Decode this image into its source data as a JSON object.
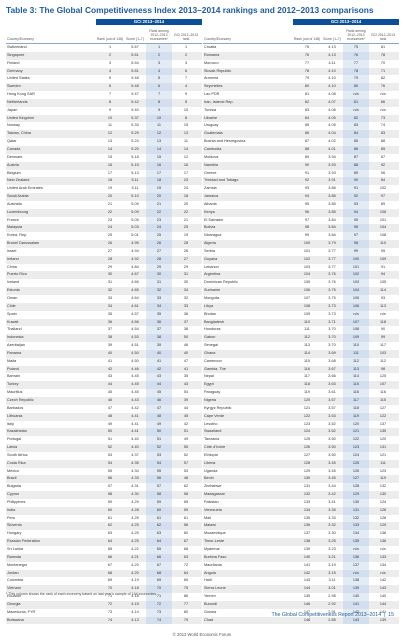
{
  "page_title": "Table 3: The Global Competitiveness Index 2013–2014 rankings and 2012–2013 comparisons",
  "header": {
    "gci_1314": "GCI 2013–2014",
    "country": "Country/Economy",
    "rank": "Rank (out of 148)",
    "score": "Score (1–7)",
    "rank_among": "Rank among 2012–2013 economies*",
    "gci_1213": "GCI 2012–2013 rank"
  },
  "left_rows": [
    [
      "Switzerland",
      "1",
      "5.67",
      "1",
      "1"
    ],
    [
      "Singapore",
      "2",
      "5.61",
      "2",
      "2"
    ],
    [
      "Finland",
      "3",
      "5.54",
      "3",
      "3"
    ],
    [
      "Germany",
      "4",
      "5.51",
      "4",
      "6"
    ],
    [
      "United States",
      "5",
      "5.48",
      "5",
      "7"
    ],
    [
      "Sweden",
      "6",
      "5.48",
      "6",
      "4"
    ],
    [
      "Hong Kong SAR",
      "7",
      "5.47",
      "7",
      "9"
    ],
    [
      "Netherlands",
      "8",
      "5.42",
      "8",
      "5"
    ],
    [
      "Japan",
      "9",
      "5.40",
      "9",
      "10"
    ],
    [
      "United Kingdom",
      "10",
      "5.37",
      "10",
      "8"
    ],
    [
      "Norway",
      "11",
      "5.33",
      "11",
      "15"
    ],
    [
      "Taiwan, China",
      "12",
      "5.29",
      "12",
      "13"
    ],
    [
      "Qatar",
      "13",
      "5.24",
      "13",
      "11"
    ],
    [
      "Canada",
      "14",
      "5.20",
      "14",
      "14"
    ],
    [
      "Denmark",
      "15",
      "5.18",
      "15",
      "12"
    ],
    [
      "Austria",
      "16",
      "5.15",
      "16",
      "16"
    ],
    [
      "Belgium",
      "17",
      "5.13",
      "17",
      "17"
    ],
    [
      "New Zealand",
      "18",
      "5.11",
      "18",
      "23"
    ],
    [
      "United Arab Emirates",
      "19",
      "5.11",
      "19",
      "24"
    ],
    [
      "Saudi Arabia",
      "20",
      "5.10",
      "20",
      "18"
    ],
    [
      "Australia",
      "21",
      "5.09",
      "21",
      "20"
    ],
    [
      "Luxembourg",
      "22",
      "5.09",
      "22",
      "22"
    ],
    [
      "France",
      "23",
      "5.05",
      "23",
      "21"
    ],
    [
      "Malaysia",
      "24",
      "5.03",
      "24",
      "25"
    ],
    [
      "Korea, Rep.",
      "25",
      "5.01",
      "25",
      "19"
    ],
    [
      "Brunei Darussalam",
      "26",
      "4.95",
      "26",
      "28"
    ],
    [
      "Israel",
      "27",
      "4.94",
      "27",
      "26"
    ],
    [
      "Ireland",
      "28",
      "4.92",
      "28",
      "27"
    ],
    [
      "China",
      "29",
      "4.84",
      "29",
      "29"
    ],
    [
      "Puerto Rico",
      "30",
      "4.67",
      "30",
      "31"
    ],
    [
      "Iceland",
      "31",
      "4.66",
      "31",
      "30"
    ],
    [
      "Estonia",
      "32",
      "4.65",
      "32",
      "34"
    ],
    [
      "Oman",
      "33",
      "4.64",
      "33",
      "32"
    ],
    [
      "Chile",
      "34",
      "4.61",
      "34",
      "33"
    ],
    [
      "Spain",
      "35",
      "4.57",
      "35",
      "36"
    ],
    [
      "Kuwait",
      "36",
      "4.56",
      "36",
      "37"
    ],
    [
      "Thailand",
      "37",
      "4.54",
      "37",
      "38"
    ],
    [
      "Indonesia",
      "38",
      "4.53",
      "38",
      "50"
    ],
    [
      "Azerbaijan",
      "39",
      "4.51",
      "39",
      "46"
    ],
    [
      "Panama",
      "40",
      "4.50",
      "40",
      "40"
    ],
    [
      "Malta",
      "41",
      "4.50",
      "41",
      "47"
    ],
    [
      "Poland",
      "42",
      "4.46",
      "42",
      "41"
    ],
    [
      "Bahrain",
      "43",
      "4.45",
      "43",
      "35"
    ],
    [
      "Turkey",
      "44",
      "4.45",
      "44",
      "43"
    ],
    [
      "Mauritius",
      "45",
      "4.45",
      "45",
      "54"
    ],
    [
      "Czech Republic",
      "46",
      "4.43",
      "46",
      "39"
    ],
    [
      "Barbados",
      "47",
      "4.42",
      "47",
      "44"
    ],
    [
      "Lithuania",
      "48",
      "4.41",
      "48",
      "45"
    ],
    [
      "Italy",
      "49",
      "4.41",
      "49",
      "42"
    ],
    [
      "Kazakhstan",
      "50",
      "4.41",
      "50",
      "51"
    ],
    [
      "Portugal",
      "51",
      "4.40",
      "51",
      "49"
    ],
    [
      "Latvia",
      "52",
      "4.40",
      "52",
      "55"
    ],
    [
      "South Africa",
      "53",
      "4.37",
      "53",
      "52"
    ],
    [
      "Costa Rica",
      "54",
      "4.35",
      "54",
      "57"
    ],
    [
      "Mexico",
      "55",
      "4.34",
      "55",
      "53"
    ],
    [
      "Brazil",
      "56",
      "4.33",
      "56",
      "48"
    ],
    [
      "Bulgaria",
      "57",
      "4.31",
      "57",
      "62"
    ],
    [
      "Cyprus",
      "58",
      "4.30",
      "58",
      "58"
    ],
    [
      "Philippines",
      "59",
      "4.29",
      "59",
      "65"
    ],
    [
      "India",
      "60",
      "4.28",
      "60",
      "59"
    ],
    [
      "Peru",
      "61",
      "4.25",
      "61",
      "61"
    ],
    [
      "Slovenia",
      "62",
      "4.25",
      "62",
      "56"
    ],
    [
      "Hungary",
      "63",
      "4.25",
      "63",
      "60"
    ],
    [
      "Russian Federation",
      "64",
      "4.25",
      "64",
      "67"
    ],
    [
      "Sri Lanka",
      "65",
      "4.22",
      "65",
      "68"
    ],
    [
      "Rwanda",
      "66",
      "4.21",
      "66",
      "63"
    ],
    [
      "Montenegro",
      "67",
      "4.20",
      "67",
      "72"
    ],
    [
      "Jordan",
      "68",
      "4.20",
      "68",
      "64"
    ],
    [
      "Colombia",
      "69",
      "4.19",
      "69",
      "69"
    ],
    [
      "Vietnam",
      "70",
      "4.18",
      "70",
      "75"
    ],
    [
      "Ecuador",
      "71",
      "4.18",
      "71",
      "86"
    ],
    [
      "Georgia",
      "72",
      "4.15",
      "72",
      "77"
    ],
    [
      "Macedonia, FYR",
      "73",
      "4.14",
      "73",
      "80"
    ],
    [
      "Botswana",
      "74",
      "4.13",
      "74",
      "79"
    ]
  ],
  "right_rows": [
    [
      "Croatia",
      "75",
      "4.13",
      "75",
      "81"
    ],
    [
      "Romania",
      "76",
      "4.13",
      "76",
      "78"
    ],
    [
      "Morocco",
      "77",
      "4.11",
      "77",
      "70"
    ],
    [
      "Slovak Republic",
      "78",
      "4.10",
      "78",
      "71"
    ],
    [
      "Armenia",
      "79",
      "4.10",
      "79",
      "82"
    ],
    [
      "Seychelles",
      "80",
      "4.10",
      "80",
      "76"
    ],
    [
      "Lao PDR",
      "81",
      "4.08",
      "n/a",
      "n/a"
    ],
    [
      "Iran, Islamic Rep.",
      "82",
      "4.07",
      "81",
      "66"
    ],
    [
      "Tunisia",
      "83",
      "4.06",
      "n/a",
      "n/a"
    ],
    [
      "Ukraine",
      "84",
      "4.05",
      "82",
      "73"
    ],
    [
      "Uruguay",
      "85",
      "4.05",
      "83",
      "74"
    ],
    [
      "Guatemala",
      "86",
      "4.04",
      "84",
      "83"
    ],
    [
      "Bosnia and Herzegovina",
      "87",
      "4.02",
      "85",
      "88"
    ],
    [
      "Cambodia",
      "88",
      "4.01",
      "86",
      "85"
    ],
    [
      "Moldova",
      "89",
      "3.94",
      "87",
      "87"
    ],
    [
      "Namibia",
      "90",
      "3.93",
      "88",
      "92"
    ],
    [
      "Greece",
      "91",
      "3.93",
      "89",
      "96"
    ],
    [
      "Trinidad and Tobago",
      "92",
      "3.91",
      "90",
      "84"
    ],
    [
      "Zambia",
      "93",
      "3.86",
      "91",
      "102"
    ],
    [
      "Jamaica",
      "94",
      "3.86",
      "92",
      "97"
    ],
    [
      "Albania",
      "95",
      "3.85",
      "93",
      "89"
    ],
    [
      "Kenya",
      "96",
      "3.85",
      "94",
      "106"
    ],
    [
      "El Salvador",
      "97",
      "3.84",
      "95",
      "101"
    ],
    [
      "Bolivia",
      "98",
      "3.84",
      "96",
      "104"
    ],
    [
      "Nicaragua",
      "99",
      "3.84",
      "97",
      "108"
    ],
    [
      "Algeria",
      "100",
      "3.79",
      "98",
      "110"
    ],
    [
      "Serbia",
      "101",
      "3.77",
      "99",
      "95"
    ],
    [
      "Guyana",
      "102",
      "3.77",
      "100",
      "109"
    ],
    [
      "Lebanon",
      "103",
      "3.77",
      "101",
      "91"
    ],
    [
      "Argentina",
      "104",
      "3.76",
      "102",
      "94"
    ],
    [
      "Dominican Republic",
      "105",
      "3.76",
      "103",
      "105"
    ],
    [
      "Suriname",
      "106",
      "3.75",
      "104",
      "114"
    ],
    [
      "Mongolia",
      "107",
      "3.75",
      "105",
      "93"
    ],
    [
      "Libya",
      "108",
      "3.73",
      "106",
      "113"
    ],
    [
      "Bhutan",
      "109",
      "3.73",
      "n/a",
      "n/a"
    ],
    [
      "Bangladesh",
      "110",
      "3.71",
      "107",
      "118"
    ],
    [
      "Honduras",
      "111",
      "3.70",
      "108",
      "90"
    ],
    [
      "Gabon",
      "112",
      "3.70",
      "109",
      "99"
    ],
    [
      "Senegal",
      "113",
      "3.70",
      "110",
      "117"
    ],
    [
      "Ghana",
      "114",
      "3.69",
      "111",
      "103"
    ],
    [
      "Cameroon",
      "115",
      "3.68",
      "112",
      "112"
    ],
    [
      "Gambia, The",
      "116",
      "3.67",
      "113",
      "98"
    ],
    [
      "Nepal",
      "117",
      "3.66",
      "114",
      "125"
    ],
    [
      "Egypt",
      "118",
      "3.63",
      "115",
      "107"
    ],
    [
      "Paraguay",
      "119",
      "3.61",
      "116",
      "116"
    ],
    [
      "Nigeria",
      "120",
      "3.57",
      "117",
      "115"
    ],
    [
      "Kyrgyz Republic",
      "121",
      "3.57",
      "118",
      "127"
    ],
    [
      "Cape Verde",
      "122",
      "3.53",
      "119",
      "122"
    ],
    [
      "Lesotho",
      "123",
      "3.52",
      "120",
      "137"
    ],
    [
      "Swaziland",
      "124",
      "3.52",
      "121",
      "135"
    ],
    [
      "Tanzania",
      "125",
      "3.50",
      "122",
      "120"
    ],
    [
      "Côte d'Ivoire",
      "126",
      "3.50",
      "123",
      "131"
    ],
    [
      "Ethiopia",
      "127",
      "3.50",
      "124",
      "121"
    ],
    [
      "Liberia",
      "128",
      "3.45",
      "125",
      "111"
    ],
    [
      "Uganda",
      "129",
      "3.45",
      "126",
      "123"
    ],
    [
      "Benin",
      "130",
      "3.45",
      "127",
      "119"
    ],
    [
      "Zimbabwe",
      "131",
      "3.44",
      "128",
      "132"
    ],
    [
      "Madagascar",
      "132",
      "3.42",
      "129",
      "130"
    ],
    [
      "Pakistan",
      "133",
      "3.41",
      "130",
      "124"
    ],
    [
      "Venezuela",
      "134",
      "3.35",
      "131",
      "126"
    ],
    [
      "Mali",
      "135",
      "3.33",
      "132",
      "128"
    ],
    [
      "Malawi",
      "136",
      "3.32",
      "133",
      "129"
    ],
    [
      "Mozambique",
      "137",
      "3.30",
      "134",
      "138"
    ],
    [
      "Timor-Leste",
      "138",
      "3.25",
      "135",
      "136"
    ],
    [
      "Myanmar",
      "139",
      "3.23",
      "n/a",
      "n/a"
    ],
    [
      "Burkina Faso",
      "140",
      "3.21",
      "136",
      "133"
    ],
    [
      "Mauritania",
      "141",
      "3.19",
      "137",
      "134"
    ],
    [
      "Angola",
      "142",
      "3.15",
      "n/a",
      "n/a"
    ],
    [
      "Haiti",
      "143",
      "3.11",
      "138",
      "142"
    ],
    [
      "Sierra Leone",
      "144",
      "3.01",
      "139",
      "143"
    ],
    [
      "Yemen",
      "145",
      "2.98",
      "140",
      "140"
    ],
    [
      "Burundi",
      "146",
      "2.92",
      "141",
      "144"
    ],
    [
      "Guinea",
      "147",
      "2.91",
      "142",
      "141"
    ],
    [
      "Chad",
      "148",
      "2.85",
      "143",
      "139"
    ]
  ],
  "footnote": "* This column shows the rank of each economy based on last year's sample of 144 economies.",
  "footer_title": "The Global Competitiveness Report 2013–2014",
  "page_number": "15",
  "copyright": "© 2013 World Economic Forum"
}
